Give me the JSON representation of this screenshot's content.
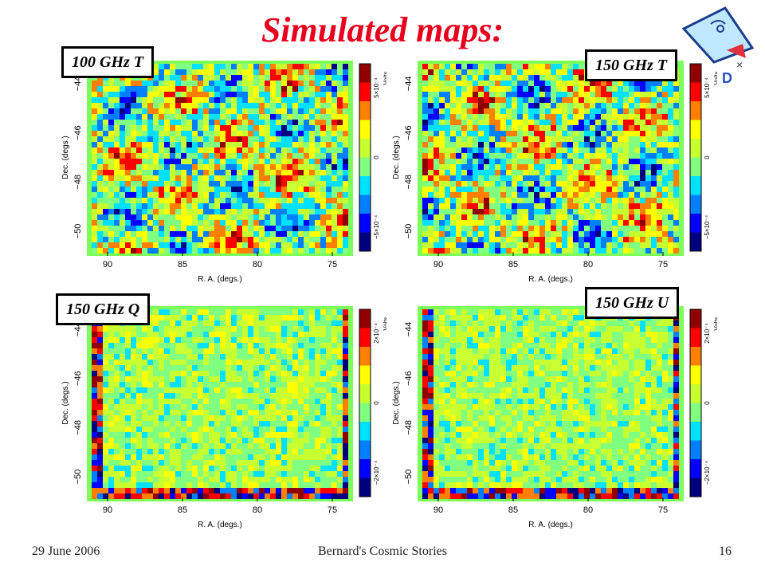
{
  "slide": {
    "title": "Simulated maps:",
    "footer": {
      "date": "29 June 2006",
      "center": "Bernard's Cosmic Stories",
      "page": "16"
    }
  },
  "axes": {
    "xlabel": "R. A. (degs.)",
    "ylabel": "Dec. (degs.)",
    "cbar_unit": "Volts",
    "xticks": [
      "90",
      "85",
      "80",
      "75"
    ],
    "yticks": [
      "−44",
      "−46",
      "−48",
      "−50"
    ]
  },
  "panels": [
    {
      "label": "100 GHz T",
      "cbar_top": "5×10⁻⁴",
      "cbar_mid": "0",
      "cbar_bot": "−5×10⁻⁴",
      "kind": "T"
    },
    {
      "label": "150 GHz T",
      "cbar_top": "5×10⁻⁴",
      "cbar_mid": "0",
      "cbar_bot": "−5×10⁻⁴",
      "kind": "T"
    },
    {
      "label": "150 GHz Q",
      "cbar_top": "2×10⁻⁴",
      "cbar_mid": "0",
      "cbar_bot": "−2×10⁻⁴",
      "kind": "P"
    },
    {
      "label": "150 GHz U",
      "cbar_top": "2×10⁻⁴",
      "cbar_mid": "0",
      "cbar_bot": "−2×10⁻⁴",
      "kind": "P"
    }
  ],
  "colors": {
    "title": "#e8001c",
    "plot_bg": "#7dff5a",
    "map_base": "#9be26a"
  }
}
